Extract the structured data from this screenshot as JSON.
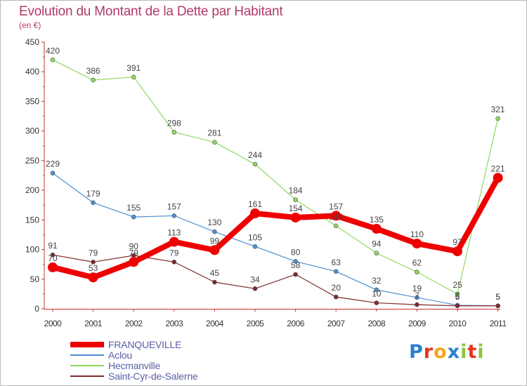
{
  "chart_data": {
    "type": "line",
    "title": "Evolution du Montant de la Dette par Habitant",
    "subtitle": "(en €)",
    "x": [
      "2000",
      "2001",
      "2002",
      "2003",
      "2004",
      "2005",
      "2006",
      "2007",
      "2008",
      "2009",
      "2010",
      "2011"
    ],
    "ylim": [
      0,
      450
    ],
    "yticks": [
      0,
      50,
      100,
      150,
      200,
      250,
      300,
      350,
      400,
      450
    ],
    "grid": false,
    "legend_position": "bottom-left",
    "series": [
      {
        "name": "FRANQUEVILLE",
        "color": "#ee0000",
        "values": [
          70,
          53,
          79,
          113,
          99,
          161,
          154,
          157,
          135,
          110,
          97,
          221
        ]
      },
      {
        "name": "Aclou",
        "color": "#4f8fd0",
        "values": [
          229,
          179,
          155,
          157,
          130,
          105,
          80,
          63,
          32,
          19,
          6,
          5
        ]
      },
      {
        "name": "Hecmanville",
        "color": "#8fd85f",
        "values": [
          420,
          386,
          391,
          298,
          281,
          244,
          184,
          140,
          94,
          62,
          25,
          321
        ]
      },
      {
        "name": "Saint-Cyr-de-Salerne",
        "color": "#7a2a2a",
        "values": [
          91,
          79,
          90,
          79,
          45,
          34,
          58,
          20,
          10,
          7,
          5,
          5
        ]
      }
    ],
    "data_labels": [
      [
        "70",
        "53",
        "79",
        "113",
        "99",
        "161",
        "154",
        "157",
        "135",
        "110",
        "97",
        "221"
      ],
      [
        "229",
        "179",
        "155",
        "157",
        "130",
        "105",
        "80",
        "63",
        "32",
        "19",
        "6",
        "5"
      ],
      [
        "420",
        "386",
        "391",
        "298",
        "281",
        "244",
        "184",
        "140",
        "94",
        "62",
        "25",
        "321"
      ],
      [
        "91",
        "79",
        "90",
        "79",
        "45",
        "34",
        "58",
        "20",
        "10",
        "7",
        "5",
        "5"
      ]
    ]
  },
  "logo": {
    "text": "Proxiti",
    "colors": [
      "#2a7fd4",
      "#e8331c",
      "#f5a51e",
      "#2a7fd4",
      "#8bc53f",
      "#e8331c",
      "#8bc53f"
    ]
  }
}
